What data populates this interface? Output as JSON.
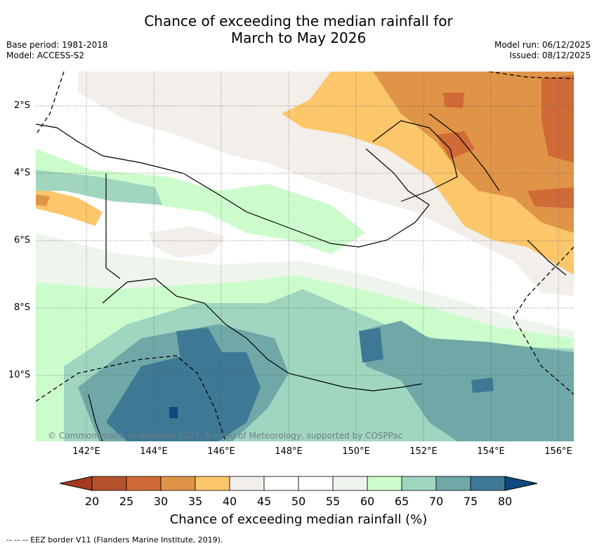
{
  "title_line1": "Chance of exceeding the median rainfall for",
  "title_line2": "March to May 2026",
  "meta": {
    "base_period": "Base period: 1981-2018",
    "model": "Model: ACCESS-S2",
    "model_run": "Model run: 06/12/2025",
    "issued": "Issued: 08/12/2025"
  },
  "latitude_labels": [
    "2°S",
    "4°S",
    "6°S",
    "8°S",
    "10°S"
  ],
  "longitude_labels": [
    "142°E",
    "144°E",
    "146°E",
    "148°E",
    "150°E",
    "152°E",
    "154°E",
    "156°E"
  ],
  "colorbar": {
    "label": "Chance of exceeding median rainfall (%)",
    "ticks": [
      "20",
      "25",
      "30",
      "35",
      "40",
      "45",
      "50",
      "55",
      "60",
      "65",
      "70",
      "75",
      "80"
    ],
    "colors": [
      "#a63a1e",
      "#b5512c",
      "#d06a36",
      "#e09447",
      "#fcc66a",
      "#f2eee9",
      "#ffffff",
      "#ffffff",
      "#edf5ec",
      "#ccfccc",
      "#a0d6c0",
      "#70a8a8",
      "#3d7895",
      "#0e4a80"
    ]
  },
  "copyright": "© Commonwealth of Australia 2025, Bureau of Meteorology, supported by COSPPac",
  "legend_text": "--  --  -- EEZ border V11 (Flanders Marine Institute, 2019)."
}
